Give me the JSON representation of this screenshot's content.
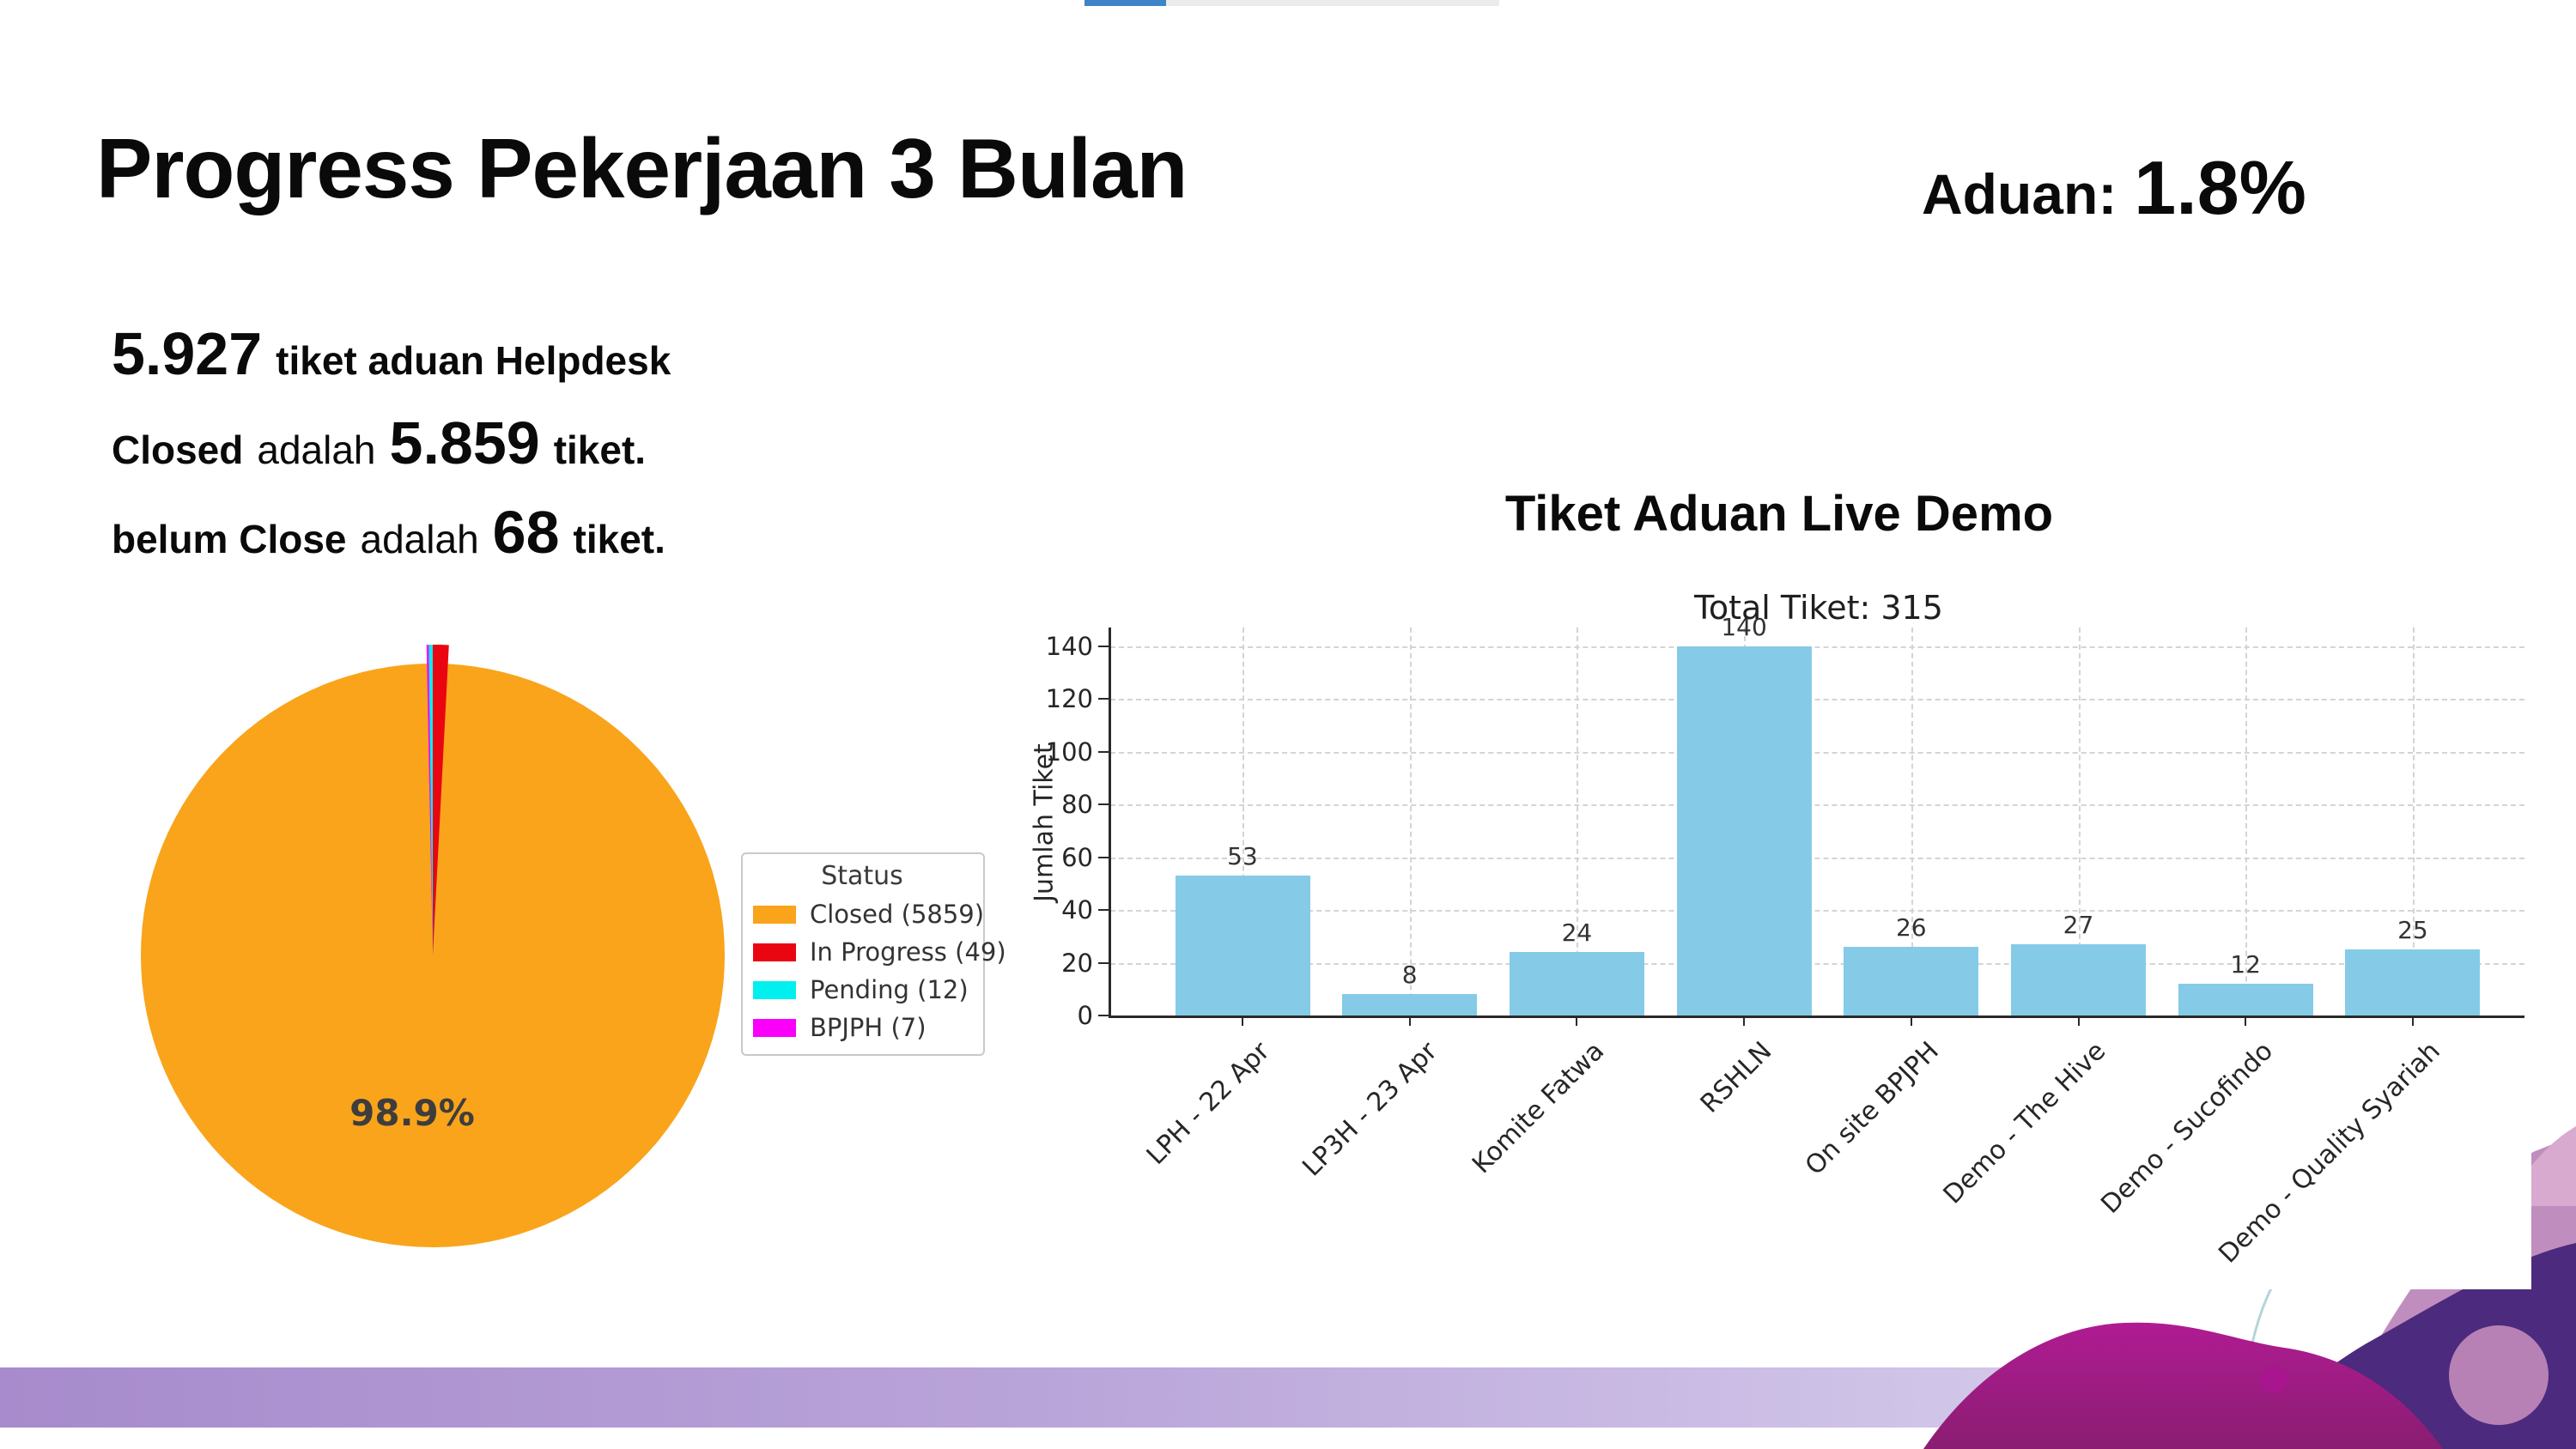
{
  "page": {
    "background": "#ffffff"
  },
  "top_strip": {
    "blue_color": "#3d85c6",
    "gray_color": "#ebebeb"
  },
  "header": {
    "title": "Progress Pekerjaan 3 Bulan",
    "aduan_label": "Aduan:",
    "aduan_value": "1.8%"
  },
  "summary": {
    "line1_value": "5.927",
    "line1_text": "tiket aduan Helpdesk",
    "line2_bold": "Closed",
    "line2_mid": "adalah",
    "line2_value": "5.859",
    "line2_tail": "tiket.",
    "line3_bold": "belum Close",
    "line3_mid": "adalah",
    "line3_value": "68",
    "line3_tail": "tiket."
  },
  "pie": {
    "center_label": "98.9%",
    "legend_title": "Status",
    "total": 5927,
    "slices": [
      {
        "name": "Closed",
        "count": 5859,
        "legend_label": "Closed (5859)",
        "color": "#F9A41B"
      },
      {
        "name": "In Progress",
        "count": 49,
        "legend_label": "In Progress (49)",
        "color": "#EA0611"
      },
      {
        "name": "Pending",
        "count": 12,
        "legend_label": "Pending (12)",
        "color": "#00F0F0"
      },
      {
        "name": "BPJPH",
        "count": 7,
        "legend_label": "BPJPH (7)",
        "color": "#FA00FA"
      }
    ]
  },
  "chart_data": {
    "type": "bar",
    "title": "Tiket Aduan Live Demo",
    "axes_title": "Total Tiket: 315",
    "ylabel": "Jumlah Tiket",
    "xlabel": "",
    "categories": [
      "LPH - 22 Apr",
      "LP3H - 23 Apr",
      "Komite Fatwa",
      "RSHLN",
      "On site BPJPH",
      "Demo - The Hive",
      "Demo - Sucofindo",
      "Demo - Quality Syariah"
    ],
    "values": [
      53,
      8,
      24,
      140,
      26,
      27,
      12,
      25
    ],
    "yticks": [
      0,
      20,
      40,
      60,
      80,
      100,
      120,
      140
    ],
    "ylim": [
      0,
      147
    ],
    "bar_color": "#85CBE8",
    "grid": "dashed, both axes",
    "legend_position": "none"
  },
  "decoration": {
    "band_left_color": "#a78bcc",
    "band_right_color": "#ddd3ef",
    "wave_dark_purple": "#4c2a7d",
    "wave_magenta": "#b01b93",
    "wave_magenta_deep": "#8a1d71",
    "wave_mauve": "#c08dbf",
    "wave_pink_corner": "#d9aad0",
    "wave_gray": "#cfc7d9",
    "wave_pink": "#e186b5",
    "wave_bump": "#b781b5",
    "wave_dot": "#a8158e",
    "wave_cyan_line": "#a9cdd3"
  }
}
